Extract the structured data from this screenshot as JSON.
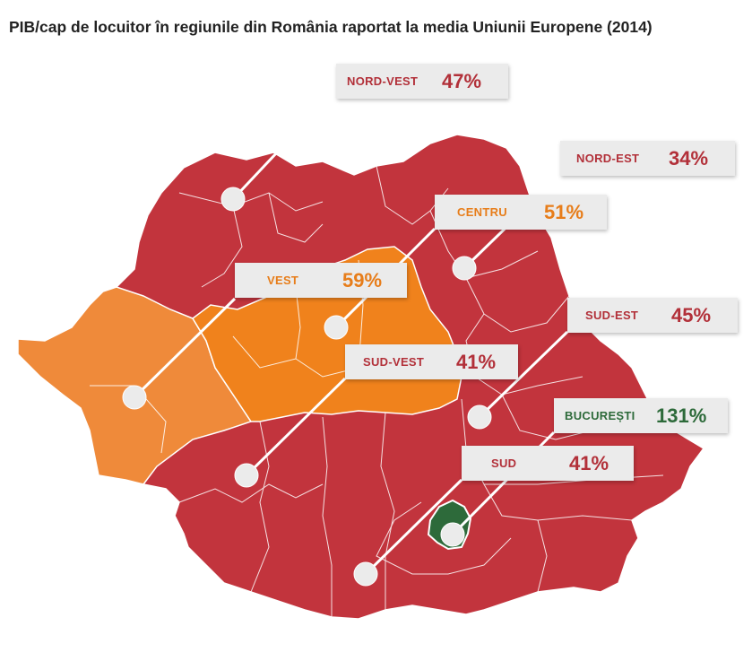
{
  "title": "PIB/cap de locuitor în regiunile din România raportat la media Uniunii Europene (2014)",
  "colors": {
    "red": "#c2343d",
    "orange": "#f0821c",
    "light_orange": "#ef8a3a",
    "green": "#2d6a3a",
    "text_red": "#b23039",
    "text_orange": "#e77d1a",
    "text_green": "#2d6a3a"
  },
  "regions": {
    "nord_vest": {
      "name": "NORD-VEST",
      "value": "47%"
    },
    "nord_est": {
      "name": "NORD-EST",
      "value": "34%"
    },
    "centru": {
      "name": "CENTRU",
      "value": "51%"
    },
    "vest": {
      "name": "VEST",
      "value": "59%"
    },
    "sud_est": {
      "name": "SUD-EST",
      "value": "45%"
    },
    "sud_vest": {
      "name": "SUD-VEST",
      "value": "41%"
    },
    "bucuresti": {
      "name": "BUCUREȘTI",
      "value": "131%"
    },
    "sud": {
      "name": "SUD",
      "value": "41%"
    }
  }
}
